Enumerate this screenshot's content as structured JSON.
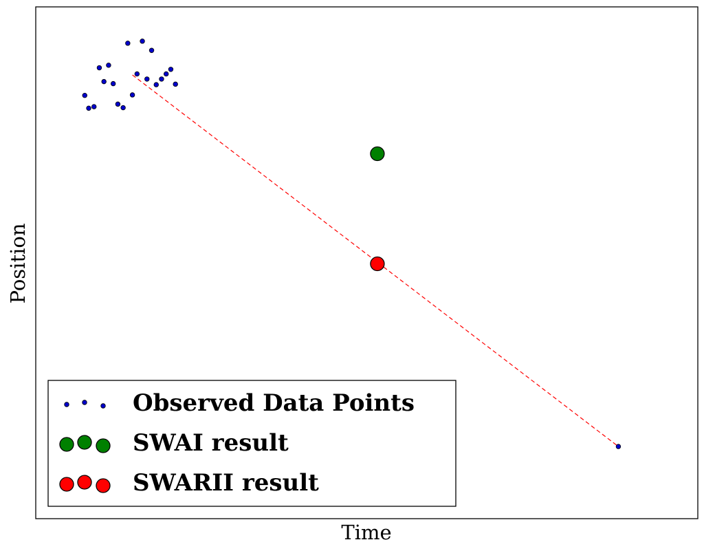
{
  "chart_data": {
    "type": "scatter",
    "xlabel": "Time",
    "ylabel": "Position",
    "xlim": [
      0,
      100
    ],
    "ylim": [
      0,
      100
    ],
    "ticks_shown": false,
    "grid": false,
    "legend_position": "lower-left",
    "series": [
      {
        "name": "Observed Data Points",
        "marker": "small-dot",
        "color": "#0000cc",
        "points": [
          [
            7.4,
            82.7
          ],
          [
            8.0,
            80.2
          ],
          [
            8.8,
            80.5
          ],
          [
            9.6,
            88.1
          ],
          [
            10.3,
            85.4
          ],
          [
            11.0,
            88.6
          ],
          [
            11.7,
            85.0
          ],
          [
            12.4,
            81.0
          ],
          [
            13.2,
            80.3
          ],
          [
            13.9,
            92.9
          ],
          [
            14.6,
            82.8
          ],
          [
            15.3,
            86.9
          ],
          [
            16.1,
            93.3
          ],
          [
            16.8,
            85.9
          ],
          [
            17.5,
            91.5
          ],
          [
            18.2,
            84.8
          ],
          [
            19.0,
            85.9
          ],
          [
            19.7,
            86.9
          ],
          [
            20.4,
            87.8
          ],
          [
            21.1,
            84.9
          ],
          [
            88.0,
            14.1
          ]
        ]
      },
      {
        "name": "SWAI result",
        "marker": "large-circle",
        "color": "#008000",
        "points": [
          [
            51.6,
            71.3
          ]
        ]
      },
      {
        "name": "SWARII result",
        "marker": "large-circle",
        "color": "#ff0000",
        "points": [
          [
            51.6,
            49.8
          ]
        ]
      }
    ],
    "lines": [
      {
        "style": "dashed",
        "color": "#ff0000",
        "from": [
          14.6,
          86.7
        ],
        "to": [
          88.0,
          14.1
        ]
      }
    ],
    "legend": [
      {
        "label": "Observed Data Points",
        "series": 0
      },
      {
        "label": "SWAI result",
        "series": 1
      },
      {
        "label": "SWARII result",
        "series": 2
      }
    ]
  }
}
